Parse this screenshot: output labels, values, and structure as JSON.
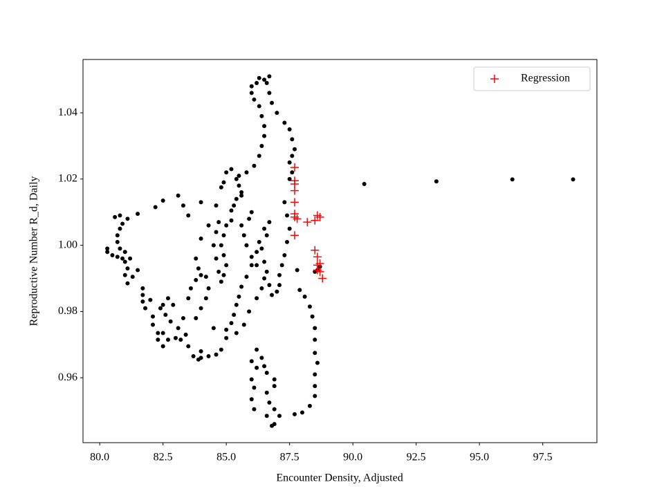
{
  "chart_data": {
    "type": "scatter",
    "xlabel": "Encounter Density, Adjusted",
    "ylabel": "Reproductive Number R_d, Daily",
    "xlim": [
      79.34,
      99.64
    ],
    "ylim": [
      0.9404,
      1.0561
    ],
    "xticks": [
      {
        "value": 80,
        "label": "80.0"
      },
      {
        "value": 82.5,
        "label": "82.5"
      },
      {
        "value": 85,
        "label": "85.0"
      },
      {
        "value": 87.5,
        "label": "87.5"
      },
      {
        "value": 90,
        "label": "90.0"
      },
      {
        "value": 92.5,
        "label": "92.5"
      },
      {
        "value": 95,
        "label": "95.0"
      },
      {
        "value": 97.5,
        "label": "97.5"
      }
    ],
    "yticks": [
      0.96,
      0.98,
      {
        "value": 1,
        "label": "1.00"
      },
      1.02,
      1.04
    ],
    "legend": "upper right",
    "series": [
      {
        "color": "#000000",
        "marker": "o",
        "x": [
          90.45,
          93.3,
          96.3,
          98.7,
          80.3,
          80.3,
          80.5,
          80.7,
          80.9,
          81.0,
          81.1,
          81.0,
          81.1,
          81.3,
          81.5,
          81.7,
          81.7,
          81.7,
          81.8,
          82.1,
          82.1,
          82.3,
          82.3,
          82.5,
          82.7,
          83.0,
          83.2,
          83.5,
          83.7,
          83.9,
          84.0,
          84.0,
          84.3,
          84.6,
          84.8,
          85.0,
          85.2,
          85.3,
          85.4,
          85.5,
          85.6,
          85.8,
          86.0,
          86.2,
          86.3,
          86.5,
          86.7,
          86.6,
          86.4,
          86.5,
          86.6,
          86.7,
          86.8,
          87.0,
          87.1,
          87.1,
          87.2,
          87.3,
          87.4,
          87.5,
          87.4,
          87.3,
          87.5,
          87.6,
          87.5,
          87.6,
          87.7,
          87.6,
          87.5,
          87.3,
          87.0,
          86.8,
          86.7,
          86.6,
          86.7,
          86.5,
          86.3,
          86.2,
          86.0,
          86.0,
          86.1,
          86.3,
          86.4,
          86.5,
          86.5,
          86.4,
          86.3,
          86.1,
          85.8,
          85.5,
          85.5,
          85.6,
          85.4,
          85.3,
          85.2,
          85.2,
          85.0,
          84.9,
          84.8,
          84.9,
          85.0,
          84.9,
          84.8,
          84.7,
          84.6,
          84.5,
          84.6,
          84.7,
          84.0,
          83.5,
          83.3,
          83.1,
          82.5,
          82.2,
          81.5,
          81.1,
          80.9,
          80.8,
          80.7,
          80.7,
          80.8,
          81.0,
          81.2,
          80.6,
          80.8,
          82.4,
          82.6,
          82.8,
          83.1,
          83.3,
          83.5,
          83.6,
          83.8,
          84.0,
          84.2,
          84.3,
          84.2,
          84.0,
          83.8,
          84.5,
          85.0,
          85.4,
          85.7,
          85.9,
          86.2,
          86.4,
          86.5,
          86.2,
          86.0,
          85.8,
          85.7,
          85.6,
          85.9,
          86.0,
          85.6,
          85.4,
          85.2,
          85.0,
          84.9,
          84.8,
          84.6,
          84.3,
          84.0,
          83.8,
          83.9,
          82.9,
          82.7,
          82.5,
          83.4,
          82.0,
          82.5,
          86.2,
          86.4,
          86.5,
          86.6,
          86.9,
          86.9,
          86.6,
          86.7,
          86.9,
          87.1,
          86.9,
          86.8,
          86.6,
          86.1,
          86.0,
          86.1,
          86.0,
          86.2,
          86.0,
          87.7,
          88.0,
          88.3,
          88.5,
          88.5,
          88.5,
          88.6,
          88.5,
          88.5,
          88.5,
          88.4,
          88.3,
          88.1,
          87.9,
          87.8,
          88.6,
          88.7,
          88.5
        ],
        "y": [
          1.0185,
          1.0193,
          1.0199,
          1.0199,
          0.999,
          0.998,
          0.997,
          0.9965,
          0.996,
          0.995,
          0.993,
          0.991,
          0.9885,
          0.9905,
          0.9925,
          0.987,
          0.985,
          0.983,
          0.981,
          0.9785,
          0.976,
          0.9735,
          0.9715,
          0.9695,
          0.9715,
          0.972,
          0.9715,
          0.9695,
          0.9665,
          0.9655,
          0.966,
          0.968,
          0.9665,
          0.967,
          0.9685,
          0.972,
          0.9765,
          0.979,
          0.982,
          0.9845,
          0.9875,
          0.9905,
          0.994,
          0.998,
          1.001,
          1.005,
          1.007,
          1.003,
          0.999,
          0.995,
          0.992,
          0.988,
          0.985,
          0.986,
          0.988,
          0.991,
          0.994,
          0.997,
          1.001,
          1.005,
          1.009,
          1.013,
          1.02,
          1.022,
          1.025,
          1.027,
          1.029,
          1.032,
          1.035,
          1.037,
          1.04,
          1.043,
          1.046,
          1.049,
          1.051,
          1.05,
          1.0505,
          1.049,
          1.048,
          1.046,
          1.044,
          1.042,
          1.039,
          1.036,
          1.033,
          1.03,
          1.027,
          1.024,
          1.022,
          1.021,
          1.018,
          1.016,
          1.014,
          1.012,
          1.0105,
          1.0075,
          1.006,
          1.003,
          1.0,
          0.997,
          0.994,
          0.991,
          0.989,
          0.992,
          0.996,
          1.0,
          1.004,
          1.007,
          1.013,
          1.009,
          1.012,
          1.015,
          1.0135,
          1.0115,
          1.0095,
          1.008,
          1.0065,
          1.005,
          1.003,
          1.001,
          0.999,
          0.998,
          0.996,
          1.0085,
          1.009,
          0.981,
          0.979,
          0.977,
          0.975,
          0.978,
          0.984,
          0.987,
          0.9895,
          0.991,
          0.9905,
          0.987,
          0.984,
          0.981,
          0.978,
          0.975,
          0.9745,
          0.9735,
          0.976,
          0.98,
          0.984,
          0.987,
          0.99,
          0.994,
          0.9965,
          1.0,
          1.003,
          1.006,
          1.008,
          1.01,
          1.015,
          1.02,
          1.023,
          1.022,
          1.019,
          1.0175,
          1.012,
          1.006,
          1.002,
          0.996,
          0.993,
          0.982,
          0.984,
          0.982,
          0.973,
          0.9835,
          0.9735,
          0.9685,
          0.966,
          0.9635,
          0.9615,
          0.9595,
          0.9575,
          0.9555,
          0.9525,
          0.9505,
          0.9485,
          0.946,
          0.9455,
          0.9485,
          0.9505,
          0.9535,
          0.957,
          0.9595,
          0.963,
          0.965,
          0.949,
          0.9495,
          0.9515,
          0.9545,
          0.9575,
          0.961,
          0.9645,
          0.9675,
          0.9715,
          0.975,
          0.9785,
          0.9815,
          0.9845,
          0.9865,
          0.9925,
          0.9925,
          0.9935,
          0.992
        ]
      },
      {
        "name": "Regression",
        "color": "#ff0000",
        "marker": "+",
        "x": [
          87.7,
          87.7,
          87.7,
          87.7,
          87.7,
          87.7,
          87.8,
          87.7,
          87.7,
          88.2,
          88.6,
          88.7,
          88.5,
          88.5,
          88.6,
          88.6,
          88.7,
          88.7,
          88.8,
          88.6
        ],
        "y": [
          1.0235,
          1.0195,
          1.0185,
          1.0165,
          1.013,
          1.0095,
          1.008,
          1.0085,
          1.003,
          1.007,
          1.009,
          1.0085,
          1.0075,
          0.9985,
          0.9965,
          0.994,
          0.9945,
          0.992,
          0.99,
          0.9925
        ]
      }
    ]
  }
}
